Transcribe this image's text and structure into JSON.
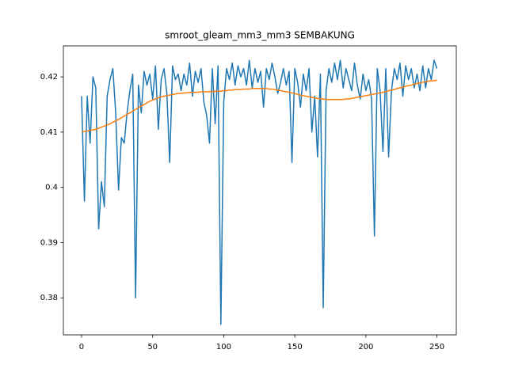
{
  "chart_data": {
    "type": "line",
    "title": "smroot_gleam_mm3_mm3 SEMBAKUNG",
    "x": [
      0,
      2,
      4,
      6,
      8,
      10,
      12,
      14,
      16,
      18,
      20,
      22,
      24,
      26,
      28,
      30,
      32,
      34,
      36,
      38,
      40,
      42,
      44,
      46,
      48,
      50,
      52,
      54,
      56,
      58,
      60,
      62,
      64,
      66,
      68,
      70,
      72,
      74,
      76,
      78,
      80,
      82,
      84,
      86,
      88,
      90,
      92,
      94,
      96,
      98,
      100,
      102,
      104,
      106,
      108,
      110,
      112,
      114,
      116,
      118,
      120,
      122,
      124,
      126,
      128,
      130,
      132,
      134,
      136,
      138,
      140,
      142,
      144,
      146,
      148,
      150,
      152,
      154,
      156,
      158,
      160,
      162,
      164,
      166,
      168,
      170,
      172,
      174,
      176,
      178,
      180,
      182,
      184,
      186,
      188,
      190,
      192,
      194,
      196,
      198,
      200,
      202,
      204,
      206,
      208,
      210,
      212,
      214,
      216,
      218,
      220,
      222,
      224,
      226,
      228,
      230,
      232,
      234,
      236,
      238,
      240,
      242,
      244,
      246,
      248,
      250
    ],
    "series": [
      {
        "color": "#1f77b4",
        "values": [
          0.4165,
          0.3975,
          0.4165,
          0.408,
          0.42,
          0.418,
          0.3925,
          0.401,
          0.3965,
          0.4165,
          0.4195,
          0.4215,
          0.4135,
          0.3995,
          0.409,
          0.408,
          0.4135,
          0.4175,
          0.4205,
          0.38,
          0.4185,
          0.4135,
          0.421,
          0.4185,
          0.4205,
          0.416,
          0.422,
          0.4105,
          0.4195,
          0.4215,
          0.417,
          0.4045,
          0.422,
          0.4195,
          0.4205,
          0.4175,
          0.4205,
          0.4185,
          0.4225,
          0.4165,
          0.421,
          0.419,
          0.4215,
          0.4155,
          0.413,
          0.408,
          0.4215,
          0.4115,
          0.422,
          0.3752,
          0.4155,
          0.4215,
          0.4195,
          0.4225,
          0.4185,
          0.422,
          0.42,
          0.4215,
          0.4185,
          0.423,
          0.418,
          0.4215,
          0.419,
          0.421,
          0.4145,
          0.4215,
          0.4195,
          0.4225,
          0.42,
          0.417,
          0.419,
          0.4215,
          0.4185,
          0.421,
          0.4045,
          0.4215,
          0.419,
          0.4145,
          0.4205,
          0.4175,
          0.4215,
          0.41,
          0.4165,
          0.4055,
          0.4205,
          0.3782,
          0.4175,
          0.4215,
          0.419,
          0.4225,
          0.4195,
          0.423,
          0.418,
          0.4215,
          0.4195,
          0.4175,
          0.4225,
          0.4185,
          0.416,
          0.4205,
          0.4175,
          0.4195,
          0.416,
          0.3912,
          0.4215,
          0.4175,
          0.4065,
          0.4215,
          0.4055,
          0.4175,
          0.4215,
          0.4195,
          0.4225,
          0.4165,
          0.422,
          0.4195,
          0.4215,
          0.418,
          0.4205,
          0.4175,
          0.422,
          0.418,
          0.4215,
          0.4195,
          0.423,
          0.4215
        ]
      },
      {
        "color": "#ff7f0e",
        "values": [
          0.4101,
          0.4101,
          0.4102,
          0.4103,
          0.4104,
          0.4105,
          0.4107,
          0.4109,
          0.4111,
          0.4113,
          0.4115,
          0.4118,
          0.412,
          0.4123,
          0.4126,
          0.4129,
          0.4132,
          0.4135,
          0.4138,
          0.4141,
          0.4144,
          0.4147,
          0.415,
          0.4153,
          0.4156,
          0.4158,
          0.416,
          0.4162,
          0.4164,
          0.4165,
          0.4166,
          0.4167,
          0.4168,
          0.4169,
          0.417,
          0.417,
          0.4171,
          0.4171,
          0.4172,
          0.4172,
          0.4172,
          0.4172,
          0.4173,
          0.4173,
          0.4173,
          0.4173,
          0.4173,
          0.4174,
          0.4174,
          0.4174,
          0.4175,
          0.4175,
          0.4176,
          0.4176,
          0.4177,
          0.4177,
          0.4177,
          0.4178,
          0.4178,
          0.4178,
          0.4179,
          0.4179,
          0.4179,
          0.4179,
          0.4179,
          0.4179,
          0.4178,
          0.4178,
          0.4177,
          0.4176,
          0.4175,
          0.4174,
          0.4173,
          0.4172,
          0.4171,
          0.417,
          0.4168,
          0.4167,
          0.4166,
          0.4165,
          0.4164,
          0.4163,
          0.4162,
          0.4161,
          0.416,
          0.416,
          0.4159,
          0.4159,
          0.4159,
          0.4159,
          0.4159,
          0.4159,
          0.4159,
          0.416,
          0.416,
          0.4161,
          0.4162,
          0.4163,
          0.4164,
          0.4165,
          0.4166,
          0.4167,
          0.4168,
          0.4169,
          0.417,
          0.4171,
          0.4172,
          0.4173,
          0.4175,
          0.4176,
          0.4177,
          0.4179,
          0.418,
          0.4181,
          0.4183,
          0.4184,
          0.4185,
          0.4187,
          0.4188,
          0.4189,
          0.419,
          0.4191,
          0.4192,
          0.4193,
          0.4193,
          0.4194
        ]
      }
    ],
    "xlim": [
      -12.8,
      263.6
    ],
    "xticks": [
      0,
      50,
      100,
      150,
      200,
      250
    ],
    "ylim": [
      0.3733,
      0.4256
    ],
    "yticks": [
      0.38,
      0.39,
      0.4,
      0.41,
      0.42
    ],
    "grid": false
  }
}
